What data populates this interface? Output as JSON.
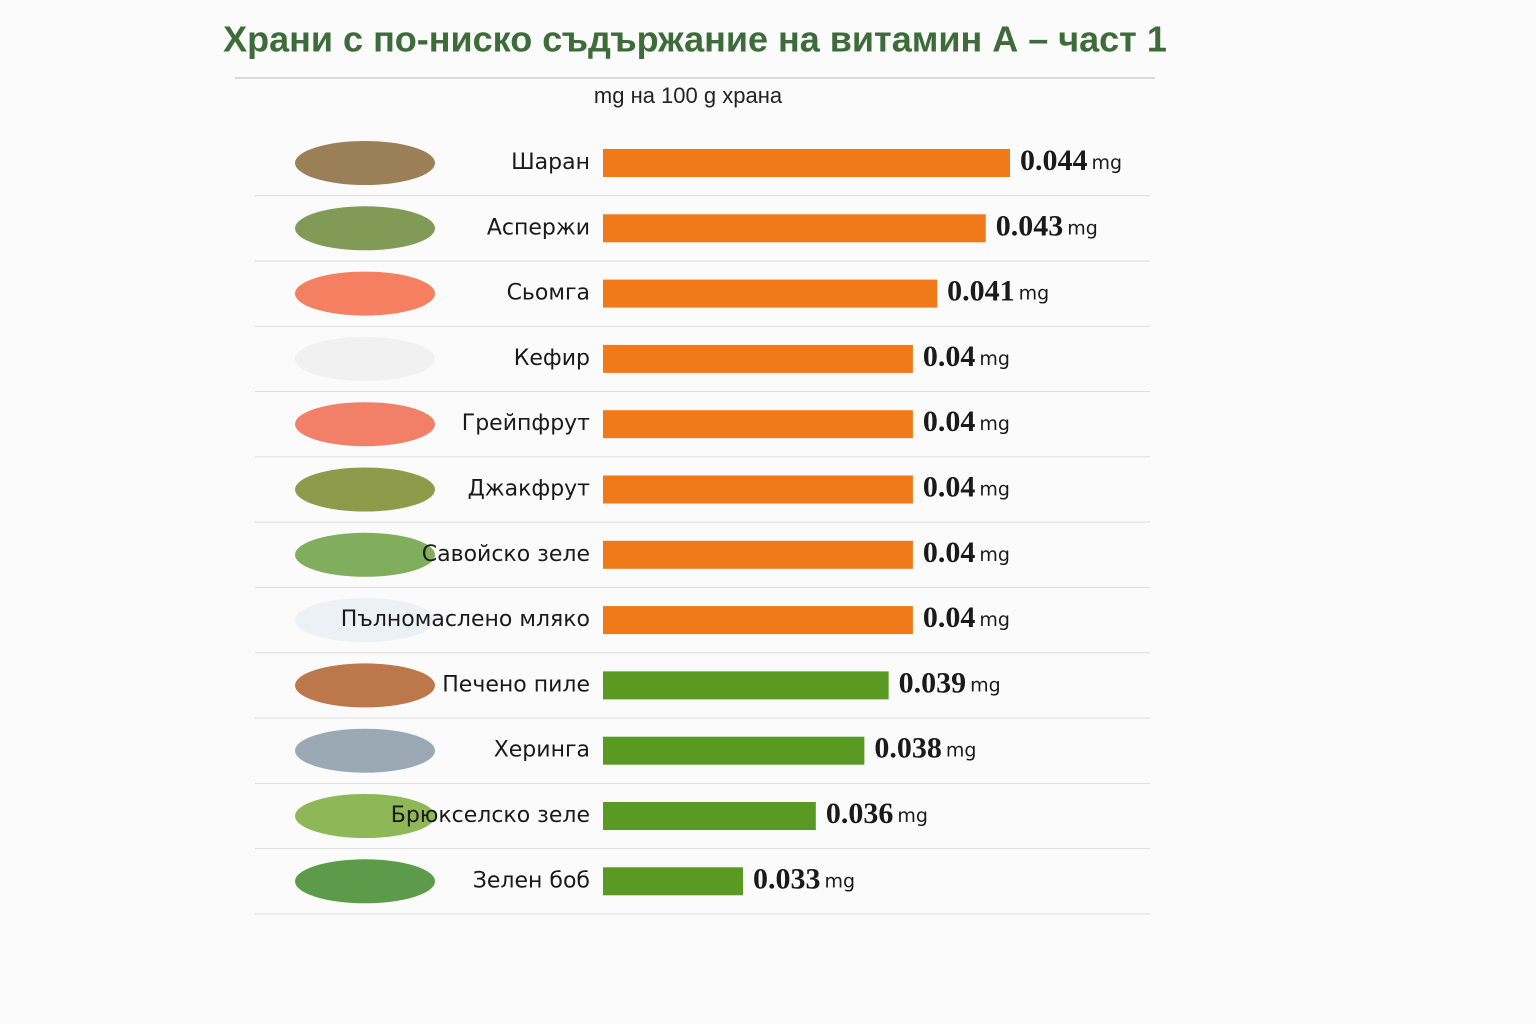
{
  "chart_data": {
    "type": "bar",
    "orientation": "horizontal",
    "title": "Храни с по-ниско съдържание на витамин А – част 1",
    "subtitle": "mg на 100 g храна",
    "unit": "mg",
    "categories": [
      "Шаран",
      "Аспержи",
      "Сьомга",
      "Кефир",
      "Грейпфрут",
      "Джакфрут",
      "Савойско зеле",
      "Пълномаслено мляко",
      "Печено пиле",
      "Херинга",
      "Брюкселско зеле",
      "Зелен боб"
    ],
    "values": [
      0.044,
      0.043,
      0.041,
      0.04,
      0.04,
      0.04,
      0.04,
      0.04,
      0.039,
      0.038,
      0.036,
      0.033
    ],
    "colors": [
      "#f07a1a",
      "#f07a1a",
      "#f07a1a",
      "#f07a1a",
      "#f07a1a",
      "#f07a1a",
      "#f07a1a",
      "#f07a1a",
      "#5a9a22",
      "#5a9a22",
      "#5a9a22",
      "#5a9a22"
    ]
  }
}
